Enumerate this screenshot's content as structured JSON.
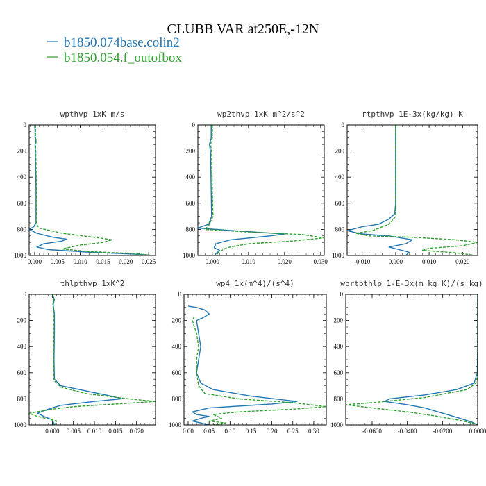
{
  "figure": {
    "title": "CLUBB VAR at250E,-12N",
    "legend": [
      {
        "label": "b1850.074base.colin2",
        "color": "#1f77b4",
        "dash": "solid"
      },
      {
        "label": "b1850.054.f_outofbox",
        "color": "#2ca02c",
        "dash": "dashed"
      }
    ]
  },
  "chart_data": [
    {
      "type": "line",
      "title": "wpthvp  1xK m/s",
      "xlim": [
        -0.0012,
        0.0265
      ],
      "xticks": [
        0.0,
        0.005,
        0.01,
        0.015,
        0.02,
        0.025
      ],
      "xtick_labels": [
        "0.000",
        "0.005",
        "0.010",
        "0.015",
        "0.020",
        "0.025"
      ],
      "ylim": [
        1000,
        0
      ],
      "yticks": [
        0,
        200,
        400,
        600,
        800,
        1000
      ],
      "series": [
        {
          "name": "b1850.074base.colin2",
          "color": "#1f77b4",
          "dash": "solid",
          "points": [
            [
              0.0001,
              0
            ],
            [
              0.0001,
              100
            ],
            [
              0.0003,
              120
            ],
            [
              0.0001,
              150
            ],
            [
              0.0002,
              300
            ],
            [
              0.0003,
              500
            ],
            [
              0.0003,
              700
            ],
            [
              0.0003,
              750
            ],
            [
              -0.0002,
              780
            ],
            [
              -0.0012,
              800
            ],
            [
              0.0005,
              830
            ],
            [
              0.004,
              860
            ],
            [
              0.007,
              875
            ],
            [
              0.006,
              890
            ],
            [
              0.002,
              910
            ],
            [
              0.0005,
              935
            ],
            [
              0.003,
              955
            ],
            [
              0.012,
              975
            ],
            [
              0.022,
              990
            ],
            [
              0.026,
              1000
            ]
          ]
        },
        {
          "name": "b1850.054.f_outofbox",
          "color": "#2ca02c",
          "dash": "dashed",
          "points": [
            [
              0.0002,
              0
            ],
            [
              0.0002,
              100
            ],
            [
              0.0004,
              120
            ],
            [
              0.0002,
              150
            ],
            [
              0.0003,
              300
            ],
            [
              0.0004,
              500
            ],
            [
              0.0004,
              700
            ],
            [
              0.0004,
              760
            ],
            [
              0.001,
              790
            ],
            [
              0.006,
              830
            ],
            [
              0.013,
              860
            ],
            [
              0.017,
              880
            ],
            [
              0.015,
              900
            ],
            [
              0.01,
              920
            ],
            [
              0.006,
              950
            ],
            [
              0.012,
              970
            ],
            [
              0.022,
              985
            ],
            [
              0.026,
              1000
            ]
          ]
        }
      ]
    },
    {
      "type": "line",
      "title": "wp2thvp  1xK m^2/s^2",
      "xlim": [
        -0.004,
        0.031
      ],
      "xticks": [
        0.0,
        0.01,
        0.02,
        0.03
      ],
      "xtick_labels": [
        "0.000",
        "0.010",
        "0.020",
        "0.030"
      ],
      "ylim": [
        1000,
        0
      ],
      "yticks": [
        0,
        200,
        400,
        600,
        800,
        1000
      ],
      "series": [
        {
          "name": "b1850.074base.colin2",
          "color": "#1f77b4",
          "dash": "solid",
          "points": [
            [
              -0.0003,
              0
            ],
            [
              -0.0003,
              100
            ],
            [
              -0.0008,
              150
            ],
            [
              -0.0005,
              200
            ],
            [
              -0.0003,
              500
            ],
            [
              -0.0002,
              700
            ],
            [
              -0.001,
              760
            ],
            [
              -0.004,
              790
            ],
            [
              0.006,
              810
            ],
            [
              0.02,
              835
            ],
            [
              0.016,
              850
            ],
            [
              0.005,
              880
            ],
            [
              0.001,
              910
            ],
            [
              0.0005,
              940
            ],
            [
              0.002,
              960
            ],
            [
              0.0008,
              990
            ],
            [
              0.001,
              1000
            ]
          ]
        },
        {
          "name": "b1850.054.f_outofbox",
          "color": "#2ca02c",
          "dash": "dashed",
          "points": [
            [
              0.0,
              0
            ],
            [
              0.0,
              100
            ],
            [
              -0.0005,
              150
            ],
            [
              -0.0002,
              200
            ],
            [
              0.0,
              500
            ],
            [
              0.0002,
              700
            ],
            [
              -0.001,
              770
            ],
            [
              -0.002,
              800
            ],
            [
              0.01,
              820
            ],
            [
              0.025,
              840
            ],
            [
              0.031,
              865
            ],
            [
              0.022,
              890
            ],
            [
              0.01,
              910
            ],
            [
              0.004,
              940
            ],
            [
              0.002,
              970
            ],
            [
              0.001,
              1000
            ]
          ]
        }
      ]
    },
    {
      "type": "line",
      "title": "rtpthvp  1E-3x(kg/kg) K",
      "xlim": [
        -0.0145,
        0.0245
      ],
      "xticks": [
        -0.01,
        0.0,
        0.01,
        0.02
      ],
      "xtick_labels": [
        "-0.010",
        "0.000",
        "0.010",
        "0.020"
      ],
      "ylim": [
        1000,
        0
      ],
      "yticks": [
        0,
        200,
        400,
        600,
        800,
        1000
      ],
      "series": [
        {
          "name": "b1850.074base.colin2",
          "color": "#1f77b4",
          "dash": "solid",
          "points": [
            [
              0.0,
              0
            ],
            [
              0.0,
              300
            ],
            [
              0.0,
              600
            ],
            [
              -0.0003,
              680
            ],
            [
              -0.002,
              720
            ],
            [
              -0.005,
              760
            ],
            [
              -0.01,
              780
            ],
            [
              -0.0145,
              810
            ],
            [
              -0.01,
              835
            ],
            [
              -0.002,
              850
            ],
            [
              0.005,
              880
            ],
            [
              0.003,
              910
            ],
            [
              -0.002,
              935
            ],
            [
              0.001,
              955
            ],
            [
              0.004,
              975
            ],
            [
              0.003,
              1000
            ]
          ]
        },
        {
          "name": "b1850.054.f_outofbox",
          "color": "#2ca02c",
          "dash": "dashed",
          "points": [
            [
              0.0,
              0
            ],
            [
              0.0,
              300
            ],
            [
              0.0,
              600
            ],
            [
              0.0,
              700
            ],
            [
              -0.002,
              760
            ],
            [
              -0.007,
              810
            ],
            [
              -0.012,
              830
            ],
            [
              -0.008,
              850
            ],
            [
              0.005,
              860
            ],
            [
              0.018,
              880
            ],
            [
              0.0245,
              900
            ],
            [
              0.02,
              925
            ],
            [
              0.01,
              945
            ],
            [
              0.008,
              960
            ],
            [
              0.018,
              980
            ],
            [
              0.024,
              1000
            ]
          ]
        }
      ]
    },
    {
      "type": "line",
      "title": "thlpthvp  1xK^2",
      "xlim": [
        -0.0055,
        0.0245
      ],
      "xticks": [
        0.0,
        0.005,
        0.01,
        0.015,
        0.02
      ],
      "xtick_labels": [
        "0.000",
        "0.005",
        "0.010",
        "0.015",
        "0.020"
      ],
      "ylim": [
        1000,
        0
      ],
      "yticks": [
        0,
        200,
        400,
        600,
        800,
        1000
      ],
      "series": [
        {
          "name": "b1850.074base.colin2",
          "color": "#1f77b4",
          "dash": "solid",
          "points": [
            [
              0.0,
              0
            ],
            [
              0.0005,
              40
            ],
            [
              0.0002,
              80
            ],
            [
              0.0005,
              150
            ],
            [
              0.0005,
              300
            ],
            [
              0.0004,
              500
            ],
            [
              0.0005,
              650
            ],
            [
              0.002,
              700
            ],
            [
              0.008,
              740
            ],
            [
              0.014,
              780
            ],
            [
              0.0165,
              800
            ],
            [
              0.01,
              820
            ],
            [
              0.002,
              850
            ],
            [
              -0.001,
              880
            ],
            [
              -0.0035,
              910
            ],
            [
              -0.002,
              935
            ],
            [
              0.0,
              960
            ],
            [
              0.0005,
              1000
            ]
          ]
        },
        {
          "name": "b1850.054.f_outofbox",
          "color": "#2ca02c",
          "dash": "dashed",
          "points": [
            [
              0.0001,
              0
            ],
            [
              0.0004,
              40
            ],
            [
              0.0001,
              80
            ],
            [
              0.0004,
              150
            ],
            [
              0.0004,
              300
            ],
            [
              0.0003,
              500
            ],
            [
              0.0004,
              660
            ],
            [
              0.002,
              710
            ],
            [
              0.008,
              760
            ],
            [
              0.018,
              800
            ],
            [
              0.0245,
              820
            ],
            [
              0.015,
              840
            ],
            [
              0.005,
              860
            ],
            [
              0.0,
              880
            ],
            [
              -0.0055,
              910
            ],
            [
              -0.004,
              930
            ],
            [
              0.001,
              970
            ],
            [
              0.0005,
              1000
            ]
          ]
        }
      ]
    },
    {
      "type": "line",
      "title": "wp4  1x(m^4)/(s^4)",
      "xlim": [
        -0.01,
        0.33
      ],
      "xticks": [
        0.0,
        0.05,
        0.1,
        0.15,
        0.2,
        0.25,
        0.3
      ],
      "xtick_labels": [
        "0.00",
        "0.05",
        "0.10",
        "0.15",
        "0.20",
        "0.25",
        "0.30"
      ],
      "ylim": [
        1000,
        0
      ],
      "yticks": [
        0,
        200,
        400,
        600,
        800,
        1000
      ],
      "series": [
        {
          "name": "b1850.074base.colin2",
          "color": "#1f77b4",
          "dash": "solid",
          "points": [
            [
              0.0,
              90
            ],
            [
              0.02,
              100
            ],
            [
              0.04,
              120
            ],
            [
              0.05,
              150
            ],
            [
              0.035,
              180
            ],
            [
              0.02,
              200
            ],
            [
              0.025,
              300
            ],
            [
              0.03,
              400
            ],
            [
              0.025,
              500
            ],
            [
              0.02,
              600
            ],
            [
              0.03,
              680
            ],
            [
              0.06,
              730
            ],
            [
              0.15,
              780
            ],
            [
              0.26,
              820
            ],
            [
              0.2,
              840
            ],
            [
              0.05,
              870
            ],
            [
              0.01,
              900
            ],
            [
              0.02,
              920
            ],
            [
              0.05,
              935
            ],
            [
              0.03,
              950
            ],
            [
              0.01,
              970
            ],
            [
              0.03,
              985
            ],
            [
              0.05,
              1000
            ]
          ]
        },
        {
          "name": "b1850.054.f_outofbox",
          "color": "#2ca02c",
          "dash": "dashed",
          "points": [
            [
              0.015,
              170
            ],
            [
              0.01,
              200
            ],
            [
              0.02,
              300
            ],
            [
              0.025,
              400
            ],
            [
              0.02,
              500
            ],
            [
              0.02,
              600
            ],
            [
              0.025,
              700
            ],
            [
              0.04,
              760
            ],
            [
              0.12,
              800
            ],
            [
              0.25,
              830
            ],
            [
              0.33,
              860
            ],
            [
              0.25,
              880
            ],
            [
              0.12,
              900
            ],
            [
              0.06,
              920
            ],
            [
              0.08,
              950
            ],
            [
              0.05,
              970
            ],
            [
              0.09,
              985
            ],
            [
              0.06,
              1000
            ]
          ]
        }
      ]
    },
    {
      "type": "line",
      "title": "wprtpthlp  1-E-3x(m kg K)/(s kg)",
      "xlim": [
        -0.075,
        0.0
      ],
      "xticks": [
        -0.06,
        -0.04,
        -0.02,
        0.0
      ],
      "xtick_labels": [
        "-0.0600",
        "-0.0400",
        "-0.0200",
        "0.0000"
      ],
      "ylim": [
        1000,
        0
      ],
      "yticks": [
        0,
        200,
        400,
        600,
        800,
        1000
      ],
      "series": [
        {
          "name": "b1850.074base.colin2",
          "color": "#1f77b4",
          "dash": "solid",
          "points": [
            [
              0.0,
              0
            ],
            [
              0.0,
              400
            ],
            [
              -0.0002,
              600
            ],
            [
              -0.002,
              680
            ],
            [
              -0.012,
              730
            ],
            [
              -0.03,
              770
            ],
            [
              -0.05,
              800
            ],
            [
              -0.053,
              820
            ],
            [
              -0.04,
              845
            ],
            [
              -0.03,
              870
            ],
            [
              -0.02,
              910
            ],
            [
              -0.01,
              950
            ],
            [
              -0.003,
              980
            ],
            [
              0.0,
              1000
            ]
          ]
        },
        {
          "name": "b1850.054.f_outofbox",
          "color": "#2ca02c",
          "dash": "dashed",
          "points": [
            [
              0.0,
              0
            ],
            [
              0.0,
              400
            ],
            [
              0.0,
              600
            ],
            [
              -0.001,
              680
            ],
            [
              -0.006,
              730
            ],
            [
              -0.03,
              790
            ],
            [
              -0.06,
              830
            ],
            [
              -0.075,
              845
            ],
            [
              -0.06,
              870
            ],
            [
              -0.04,
              900
            ],
            [
              -0.025,
              930
            ],
            [
              -0.01,
              965
            ],
            [
              -0.002,
              990
            ],
            [
              0.0,
              1000
            ]
          ]
        }
      ]
    }
  ]
}
